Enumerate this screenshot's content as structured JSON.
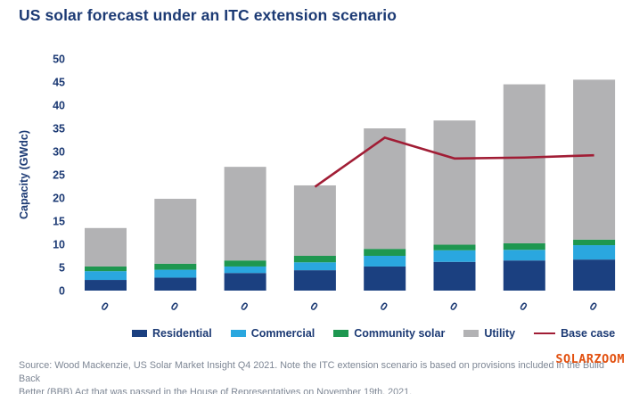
{
  "title": "US solar forecast under an ITC extension scenario",
  "chart_data": {
    "type": "bar",
    "subtype": "stacked-bar-with-line",
    "categories": [
      "0",
      "0",
      "0",
      "0",
      "0",
      "0",
      "0",
      "0"
    ],
    "series": [
      {
        "name": "Residential",
        "color": "#1b4080",
        "values": [
          2.3,
          2.8,
          3.8,
          4.4,
          5.2,
          6.2,
          6.5,
          6.7
        ]
      },
      {
        "name": "Commercial",
        "color": "#2aa7df",
        "values": [
          1.9,
          1.7,
          1.4,
          1.7,
          2.3,
          2.5,
          2.3,
          3.1
        ]
      },
      {
        "name": "Community solar",
        "color": "#1e9750",
        "values": [
          1.0,
          1.3,
          1.3,
          1.4,
          1.5,
          1.2,
          1.4,
          1.2
        ]
      },
      {
        "name": "Utility",
        "color": "#b2b2b4",
        "values": [
          8.3,
          14.0,
          20.2,
          15.2,
          26.0,
          26.8,
          34.3,
          34.5
        ]
      }
    ],
    "line_series": {
      "name": "Base case",
      "color": "#a11d35",
      "values": [
        null,
        null,
        null,
        22.4,
        33.0,
        28.5,
        28.7,
        29.2
      ]
    },
    "stacked_totals": [
      13.5,
      19.8,
      26.7,
      22.7,
      35.0,
      36.7,
      44.5,
      45.5
    ],
    "title": "US solar forecast under an ITC extension scenario",
    "xlabel": "",
    "ylabel": "Capacity (GWdc)",
    "y_ticks": [
      0,
      5,
      10,
      15,
      20,
      25,
      30,
      35,
      40,
      45,
      50
    ],
    "ylim": [
      0,
      50
    ],
    "grid": false,
    "legend_position": "bottom"
  },
  "axis": {
    "y_label": "Capacity (GWdc)",
    "tick_color": "#1c3a74"
  },
  "legend": {
    "items": [
      {
        "label": "Residential",
        "color": "#1b4080",
        "marker": "box"
      },
      {
        "label": "Commercial",
        "color": "#2aa7df",
        "marker": "box"
      },
      {
        "label": "Community solar",
        "color": "#1e9750",
        "marker": "box"
      },
      {
        "label": "Utility",
        "color": "#b2b2b4",
        "marker": "box"
      },
      {
        "label": "Base case",
        "color": "#a11d35",
        "marker": "line"
      }
    ]
  },
  "source": {
    "line1": "Source: Wood Mackenzie, US Solar Market Insight Q4 2021. Note the ITC extension scenario is based on provisions included in the Build Back",
    "line2": "Better (BBB) Act that was passed in the House of Representatives on November 19th, 2021."
  },
  "watermark": "SOLARZOOM",
  "colors": {
    "title_text": "#1c3a74",
    "residential": "#1b4080",
    "commercial": "#2aa7df",
    "community_solar": "#1e9750",
    "utility": "#b2b2b4",
    "base_case_line": "#a11d35",
    "source_text": "#7d8694",
    "watermark_text": "#e2500f"
  }
}
